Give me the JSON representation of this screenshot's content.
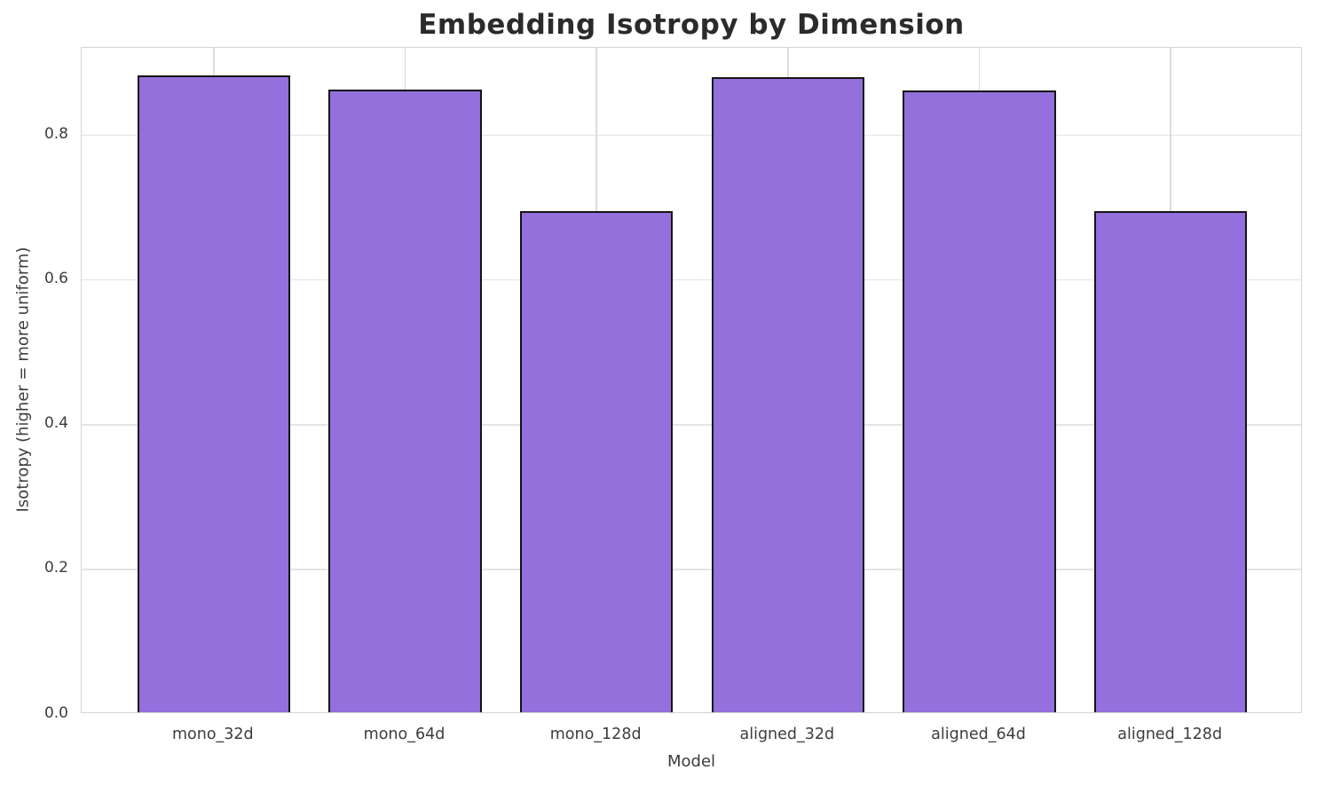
{
  "chart_data": {
    "type": "bar",
    "title": "Embedding Isotropy by Dimension",
    "xlabel": "Model",
    "ylabel": "Isotropy (higher = more uniform)",
    "categories": [
      "mono_32d",
      "mono_64d",
      "mono_128d",
      "aligned_32d",
      "aligned_64d",
      "aligned_128d"
    ],
    "values": [
      0.881,
      0.861,
      0.693,
      0.878,
      0.86,
      0.693
    ],
    "yticks": [
      "0.0",
      "0.2",
      "0.4",
      "0.6",
      "0.8"
    ],
    "ytick_values": [
      0.0,
      0.2,
      0.4,
      0.6,
      0.8
    ],
    "ylim": [
      0,
      0.921
    ],
    "grid": true,
    "legend": "none",
    "bar_color": "#9370DB",
    "bar_edge_color": "#151515",
    "grid_color": "#dcdcdc",
    "text_color": "#3d3d3d",
    "title_color": "#2b2b2b"
  }
}
